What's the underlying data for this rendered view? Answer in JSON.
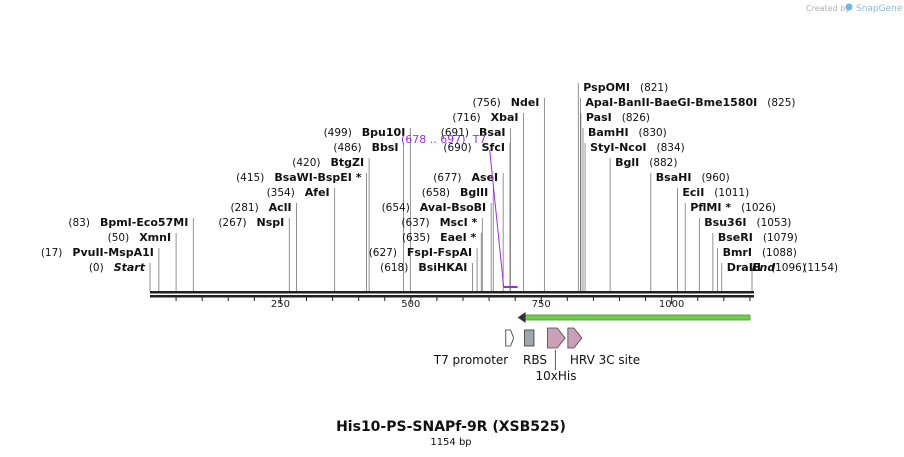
{
  "branding": "Created by",
  "brand_name": "SnapGene",
  "title": "His10-PS-SNAPf-9R (XSB525)",
  "length_label": "1154 bp",
  "sequence_length": 1154,
  "ticks": [
    {
      "value": 250,
      "label": "250"
    },
    {
      "value": 500,
      "label": "500"
    },
    {
      "value": 750,
      "label": "750"
    },
    {
      "value": 1000,
      "label": "1000"
    }
  ],
  "enzymes": [
    {
      "pos": "(0)",
      "names": [
        {
          "n": "Start",
          "i": true
        }
      ],
      "site": 0,
      "row": 0,
      "side": "left"
    },
    {
      "pos": "(17)",
      "names": [
        {
          "n": "PvuII"
        },
        {
          "n": "MspA1I"
        }
      ],
      "site": 17,
      "row": 1,
      "side": "left"
    },
    {
      "pos": "(50)",
      "names": [
        {
          "n": "XmnI"
        }
      ],
      "site": 50,
      "row": 2,
      "side": "left"
    },
    {
      "pos": "(83)",
      "names": [
        {
          "n": "BpmI"
        },
        {
          "n": "Eco57MI"
        }
      ],
      "site": 83,
      "row": 3,
      "side": "left"
    },
    {
      "pos": "(267)",
      "names": [
        {
          "n": "NspI"
        }
      ],
      "site": 267,
      "row": 3,
      "side": "left"
    },
    {
      "pos": "(281)",
      "names": [
        {
          "n": "AclI"
        }
      ],
      "site": 281,
      "row": 4,
      "side": "left"
    },
    {
      "pos": "(354)",
      "names": [
        {
          "n": "AfeI"
        }
      ],
      "site": 354,
      "row": 5,
      "side": "left"
    },
    {
      "pos": "(415)",
      "names": [
        {
          "n": "BsaWI"
        },
        {
          "n": "BspEI",
          "star": true
        }
      ],
      "site": 415,
      "row": 6,
      "side": "left"
    },
    {
      "pos": "(420)",
      "names": [
        {
          "n": "BtgZI"
        }
      ],
      "site": 420,
      "row": 7,
      "side": "left"
    },
    {
      "pos": "(486)",
      "names": [
        {
          "n": "BbsI"
        }
      ],
      "site": 486,
      "row": 8,
      "side": "left"
    },
    {
      "pos": "(499)",
      "names": [
        {
          "n": "Bpu10I"
        }
      ],
      "site": 499,
      "row": 9,
      "side": "left"
    },
    {
      "pos": "(618)",
      "names": [
        {
          "n": "BsiHKAI"
        }
      ],
      "site": 618,
      "row": 0,
      "side": "left"
    },
    {
      "pos": "(627)",
      "names": [
        {
          "n": "FspI"
        },
        {
          "n": "FspAI"
        }
      ],
      "site": 627,
      "row": 1,
      "side": "left"
    },
    {
      "pos": "(635)",
      "names": [
        {
          "n": "EaeI",
          "star": true
        }
      ],
      "site": 635,
      "row": 2,
      "side": "left"
    },
    {
      "pos": "(637)",
      "names": [
        {
          "n": "MscI",
          "star": true
        }
      ],
      "site": 637,
      "row": 3,
      "side": "left"
    },
    {
      "pos": "(654)",
      "names": [
        {
          "n": "AvaI"
        },
        {
          "n": "BsoBI"
        }
      ],
      "site": 654,
      "row": 4,
      "side": "left"
    },
    {
      "pos": "(658)",
      "names": [
        {
          "n": "BglII"
        }
      ],
      "site": 658,
      "row": 5,
      "side": "left"
    },
    {
      "pos": "(677)",
      "names": [
        {
          "n": "AseI"
        }
      ],
      "site": 677,
      "row": 6,
      "side": "left"
    },
    {
      "pos": "(690)",
      "names": [
        {
          "n": "SfcI"
        }
      ],
      "site": 690,
      "row": 8,
      "side": "left"
    },
    {
      "pos": "(691)",
      "names": [
        {
          "n": "BsaI"
        }
      ],
      "site": 691,
      "row": 9,
      "side": "left"
    },
    {
      "pos": "(716)",
      "names": [
        {
          "n": "XbaI"
        }
      ],
      "site": 716,
      "row": 10,
      "side": "left"
    },
    {
      "pos": "(756)",
      "names": [
        {
          "n": "NdeI"
        }
      ],
      "site": 756,
      "row": 11,
      "side": "left"
    },
    {
      "pos": "(821)",
      "names": [
        {
          "n": "PspOMI"
        }
      ],
      "site": 821,
      "row": 12,
      "side": "right"
    },
    {
      "pos": "(825)",
      "names": [
        {
          "n": "ApaI"
        },
        {
          "n": "BanII"
        },
        {
          "n": "BaeGI"
        },
        {
          "n": "Bme1580I"
        }
      ],
      "site": 825,
      "row": 11,
      "side": "right"
    },
    {
      "pos": "(826)",
      "names": [
        {
          "n": "PasI"
        }
      ],
      "site": 826,
      "row": 10,
      "side": "right"
    },
    {
      "pos": "(830)",
      "names": [
        {
          "n": "BamHI"
        }
      ],
      "site": 830,
      "row": 9,
      "side": "right"
    },
    {
      "pos": "(834)",
      "names": [
        {
          "n": "StyI"
        },
        {
          "n": "NcoI"
        }
      ],
      "site": 834,
      "row": 8,
      "side": "right"
    },
    {
      "pos": "(882)",
      "names": [
        {
          "n": "BglI"
        }
      ],
      "site": 882,
      "row": 7,
      "side": "right"
    },
    {
      "pos": "(960)",
      "names": [
        {
          "n": "BsaHI"
        }
      ],
      "site": 960,
      "row": 6,
      "side": "right"
    },
    {
      "pos": "(1011)",
      "names": [
        {
          "n": "EciI"
        }
      ],
      "site": 1011,
      "row": 5,
      "side": "right"
    },
    {
      "pos": "(1026)",
      "names": [
        {
          "n": "PflMI",
          "star": true
        }
      ],
      "site": 1026,
      "row": 4,
      "side": "right"
    },
    {
      "pos": "(1053)",
      "names": [
        {
          "n": "Bsu36I"
        }
      ],
      "site": 1053,
      "row": 3,
      "side": "right"
    },
    {
      "pos": "(1079)",
      "names": [
        {
          "n": "BseRI"
        }
      ],
      "site": 1079,
      "row": 2,
      "side": "right"
    },
    {
      "pos": "(1088)",
      "names": [
        {
          "n": "BmrI"
        }
      ],
      "site": 1088,
      "row": 1,
      "side": "right"
    },
    {
      "pos": "(1096)",
      "names": [
        {
          "n": "DraIII"
        }
      ],
      "site": 1096,
      "row": 0,
      "side": "right"
    },
    {
      "pos": "(1154)",
      "names": [
        {
          "n": "End",
          "i": true
        }
      ],
      "site": 1154,
      "row": 0,
      "side": "right",
      "end": true
    }
  ],
  "primer": {
    "label": "(678 .. 697)",
    "name": "T7",
    "start": 678,
    "end": 697,
    "color": "#9b30d9"
  },
  "orf": {
    "start": 720,
    "end": 1154,
    "color": "#6fcf4a"
  },
  "features": [
    {
      "label": "T7 promoter",
      "start": 682,
      "end": 697,
      "type": "promoter",
      "color": "#ffffff"
    },
    {
      "label": "RBS",
      "start": 718,
      "end": 736,
      "type": "box",
      "color": "#9fa6ae"
    },
    {
      "label": "10xHis",
      "start": 762,
      "end": 792,
      "type": "arrow",
      "color": "#c9a0b8"
    },
    {
      "label": "HRV 3C site",
      "start": 801,
      "end": 824,
      "type": "arrow",
      "color": "#c9a0b8"
    }
  ]
}
